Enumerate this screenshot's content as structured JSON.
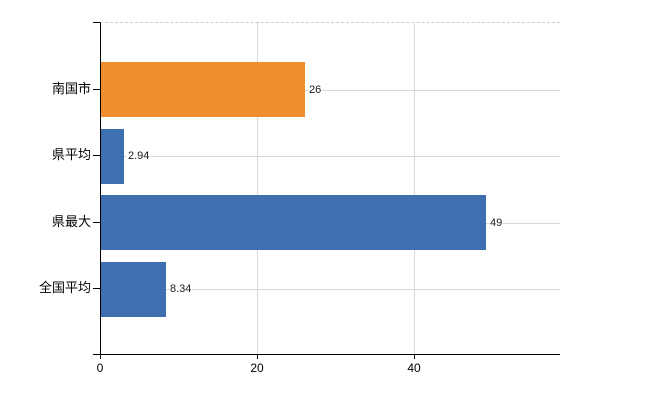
{
  "chart": {
    "background_color": "#ffffff",
    "axis_color": "#000000",
    "grid_color": "#d7d7d7",
    "top_border_color": "#cccccc",
    "text_color": "#000000"
  },
  "chart_data": {
    "type": "bar",
    "orientation": "horizontal",
    "title": "",
    "xlabel": "",
    "ylabel": "",
    "categories": [
      "南国市",
      "県平均",
      "県最大",
      "全国平均"
    ],
    "values": [
      26,
      2.94,
      49,
      8.34
    ],
    "value_labels": [
      "26",
      "2.94",
      "49",
      "8.34"
    ],
    "bar_colors": [
      "#ef8e2f",
      "#3e6fb1",
      "#3e6fb1",
      "#3e6fb1"
    ],
    "x_ticks": [
      0,
      20,
      40
    ],
    "x_tick_labels": [
      "0",
      "20",
      "40"
    ],
    "xlim": [
      0,
      58.6
    ],
    "grid": true,
    "legend": false
  }
}
